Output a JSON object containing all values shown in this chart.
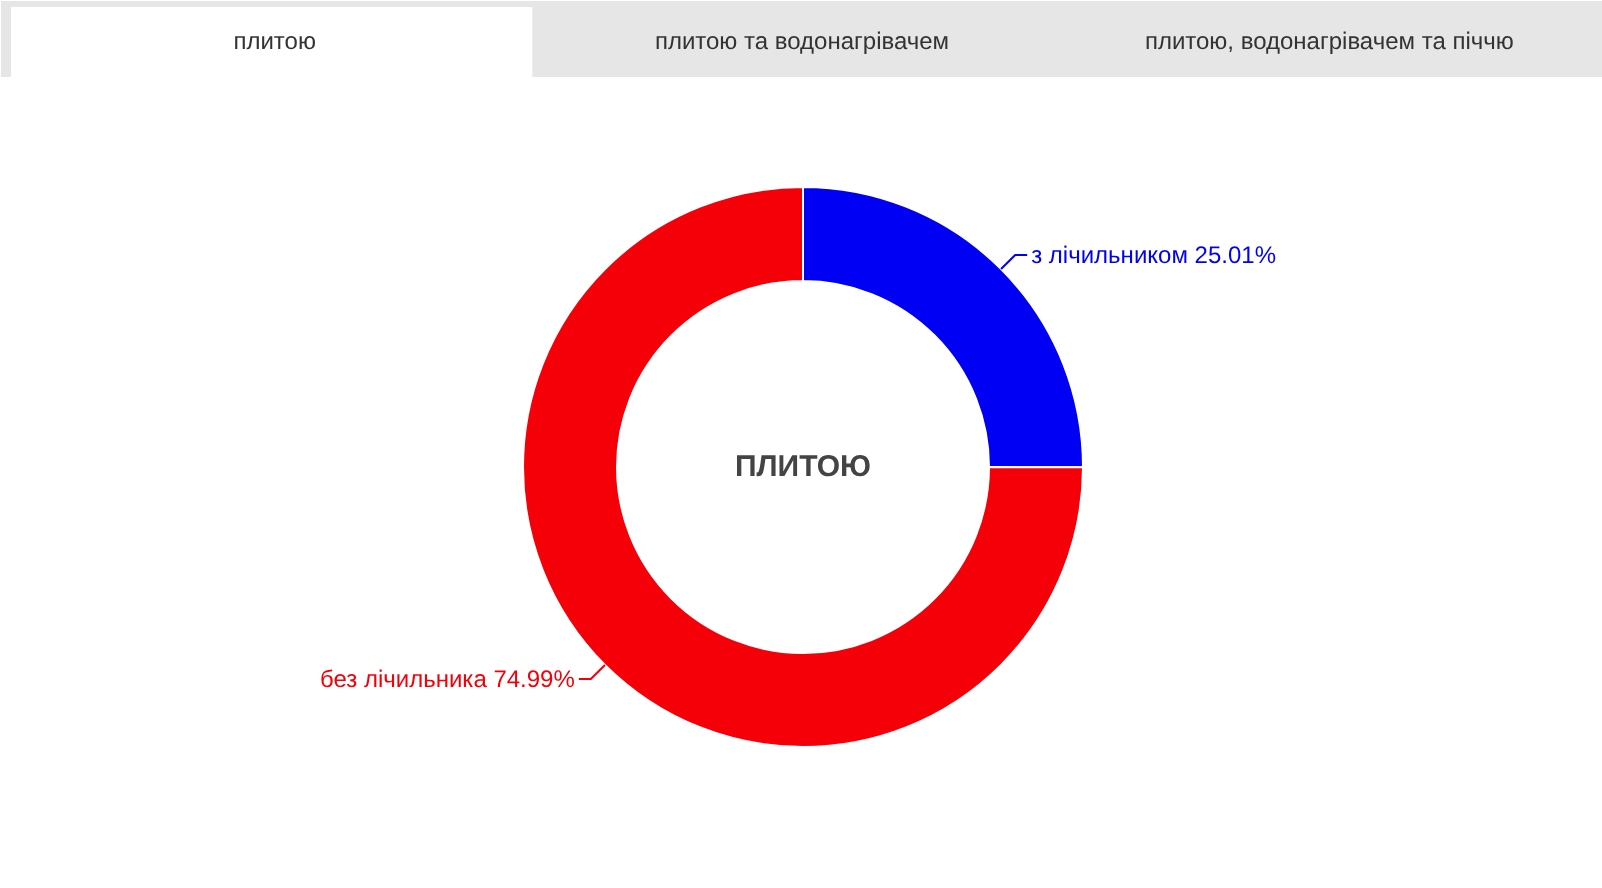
{
  "chart_data": {
    "type": "donut",
    "title": "ПЛИТОЮ",
    "annotations": [
      "плитою",
      "плитою та водонагрівачем",
      "плитою, водонагрівачем та піччю"
    ],
    "categories": [
      "з лічильником",
      "без лічильника"
    ],
    "values": [
      25.01,
      74.99
    ],
    "value_labels": [
      "25.01%",
      "74.99%"
    ],
    "colors": [
      "#0000f5",
      "#f50008"
    ]
  }
}
